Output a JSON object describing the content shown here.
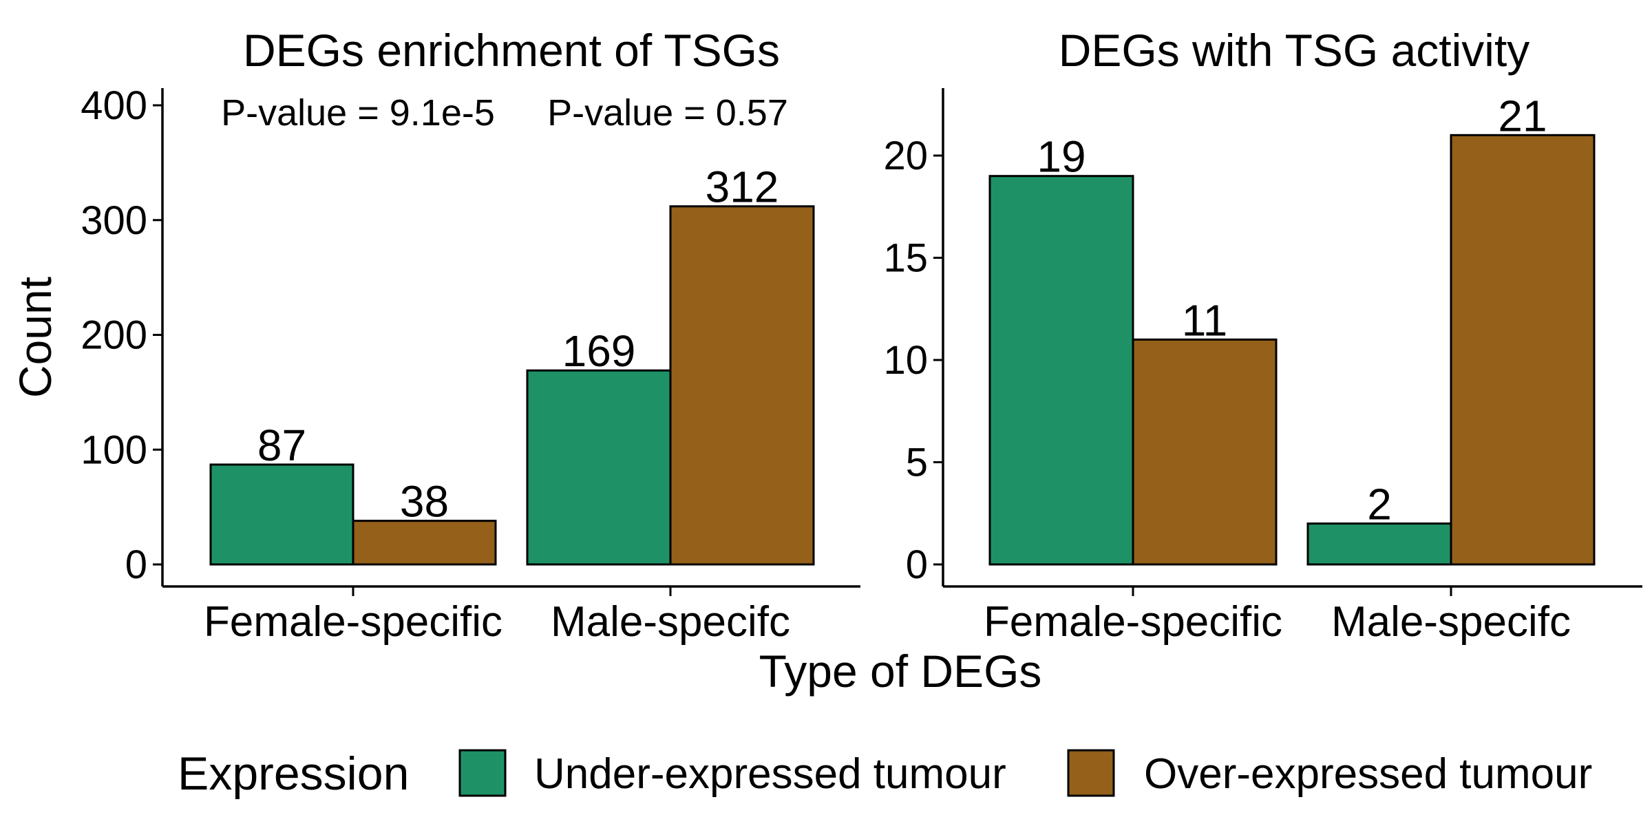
{
  "chart_data": [
    {
      "type": "bar",
      "title": "DEGs enrichment of TSGs",
      "categories": [
        "Female-specific",
        "Male-specifc"
      ],
      "series": [
        {
          "name": "Under-expressed tumour",
          "values": [
            87,
            169
          ]
        },
        {
          "name": "Over-expressed tumour",
          "values": [
            38,
            312
          ]
        }
      ],
      "ylim": [
        0,
        415
      ],
      "yticks": [
        0,
        100,
        200,
        300,
        400
      ],
      "annotations": [
        "P-value = 9.1e-5",
        "P-value = 0.57"
      ]
    },
    {
      "type": "bar",
      "title": "DEGs with TSG activity",
      "categories": [
        "Female-specific",
        "Male-specifc"
      ],
      "series": [
        {
          "name": "Under-expressed tumour",
          "values": [
            19,
            2
          ]
        },
        {
          "name": "Over-expressed tumour",
          "values": [
            11,
            21
          ]
        }
      ],
      "ylim": [
        0,
        23.3
      ],
      "yticks": [
        0,
        5,
        10,
        15,
        20
      ]
    }
  ],
  "xlabel": "Type of DEGs",
  "ylabel": "Count",
  "legend": {
    "title": "Expression",
    "position": "bottom",
    "items": [
      {
        "label": "Under-expressed tumour",
        "color": "#1E9266"
      },
      {
        "label": "Over-expressed tumour",
        "color": "#94601A"
      }
    ]
  },
  "grid": false
}
